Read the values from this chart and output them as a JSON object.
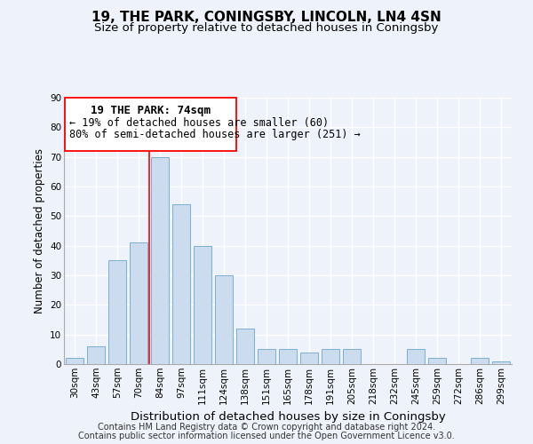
{
  "title": "19, THE PARK, CONINGSBY, LINCOLN, LN4 4SN",
  "subtitle": "Size of property relative to detached houses in Coningsby",
  "xlabel": "Distribution of detached houses by size in Coningsby",
  "ylabel": "Number of detached properties",
  "bar_color": "#ccdcef",
  "bar_edge_color": "#7aadd4",
  "background_color": "#eef2fa",
  "grid_color": "white",
  "categories": [
    "30sqm",
    "43sqm",
    "57sqm",
    "70sqm",
    "84sqm",
    "97sqm",
    "111sqm",
    "124sqm",
    "138sqm",
    "151sqm",
    "165sqm",
    "178sqm",
    "191sqm",
    "205sqm",
    "218sqm",
    "232sqm",
    "245sqm",
    "259sqm",
    "272sqm",
    "286sqm",
    "299sqm"
  ],
  "values": [
    2,
    6,
    35,
    41,
    70,
    54,
    40,
    30,
    12,
    5,
    5,
    4,
    5,
    5,
    0,
    0,
    5,
    2,
    0,
    2,
    1
  ],
  "ylim": [
    0,
    90
  ],
  "yticks": [
    0,
    10,
    20,
    30,
    40,
    50,
    60,
    70,
    80,
    90
  ],
  "ref_line_x": 3.5,
  "annotation_title": "19 THE PARK: 74sqm",
  "annotation_line1": "← 19% of detached houses are smaller (60)",
  "annotation_line2": "80% of semi-detached houses are larger (251) →",
  "footer_line1": "Contains HM Land Registry data © Crown copyright and database right 2024.",
  "footer_line2": "Contains public sector information licensed under the Open Government Licence v3.0.",
  "title_fontsize": 11,
  "subtitle_fontsize": 9.5,
  "xlabel_fontsize": 9.5,
  "ylabel_fontsize": 8.5,
  "tick_fontsize": 7.5,
  "annotation_title_fontsize": 9,
  "annotation_text_fontsize": 8.5,
  "footer_fontsize": 7
}
